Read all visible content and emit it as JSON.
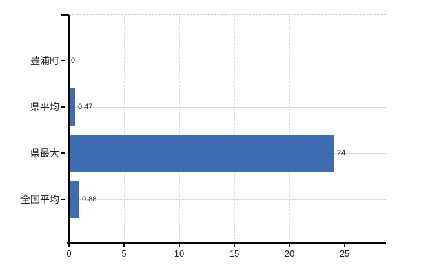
{
  "chart_data": {
    "type": "bar",
    "orientation": "horizontal",
    "title": "",
    "xlabel": "",
    "ylabel": "",
    "categories": [
      "豊浦町",
      "県平均",
      "県最大",
      "全国平均"
    ],
    "values": [
      0,
      0.47,
      24,
      0.88
    ],
    "value_labels": [
      "0",
      "0.47",
      "24",
      "0.88"
    ],
    "x_ticks": [
      0,
      5,
      10,
      15,
      20,
      25
    ],
    "x_tick_labels": [
      "0",
      "5",
      "10",
      "15",
      "20",
      "25"
    ],
    "xlim": [
      0,
      28.75
    ],
    "grid": true,
    "legend": false,
    "colors": {
      "bar": "#3e6cb1",
      "grid": "#d9d9d9",
      "top_border": "#c9c9c9",
      "axis": "#000000",
      "text": "#222222"
    }
  }
}
